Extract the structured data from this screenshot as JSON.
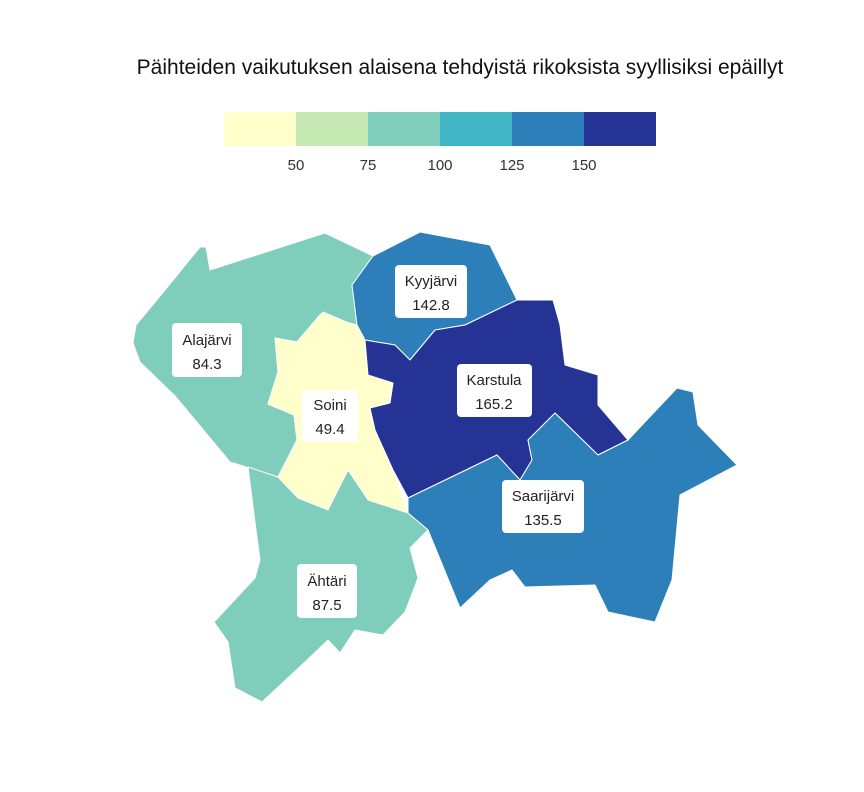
{
  "title": "Päihteiden vaikutuksen alaisena tehdyistä rikoksista syyllisiksi epäillyt",
  "legend": {
    "bins": [
      {
        "color": "#ffffcc"
      },
      {
        "color": "#c7e9b4"
      },
      {
        "color": "#7fcdbb"
      },
      {
        "color": "#41b6c4"
      },
      {
        "color": "#2c7fb8"
      },
      {
        "color": "#253494"
      }
    ],
    "ticks": [
      "50",
      "75",
      "100",
      "125",
      "150"
    ]
  },
  "regions": [
    {
      "name": "Alajärvi",
      "value": "84.3",
      "color": "#7fcdbb"
    },
    {
      "name": "Soini",
      "value": "49.4",
      "color": "#ffffcc"
    },
    {
      "name": "Kyyjärvi",
      "value": "142.8",
      "color": "#2c7fb8"
    },
    {
      "name": "Karstula",
      "value": "165.2",
      "color": "#253494"
    },
    {
      "name": "Saarijärvi",
      "value": "135.5",
      "color": "#2c7fb8"
    },
    {
      "name": "Ähtäri",
      "value": "87.5",
      "color": "#7fcdbb"
    }
  ]
}
